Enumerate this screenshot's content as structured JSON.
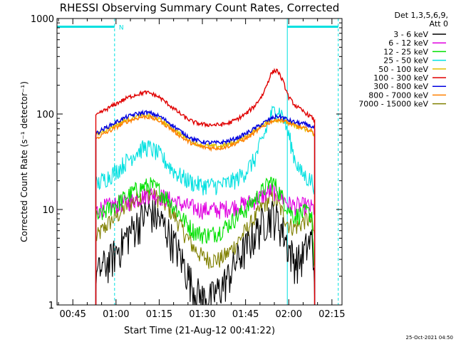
{
  "chart_data": {
    "type": "line",
    "title": "RHESSI Observing Summary Count Rates, Corrected",
    "xlabel": "Start Time (21-Aug-12 00:41:22)",
    "ylabel": "Corrected Count Rate (s⁻¹ detector⁻¹)",
    "y_scale": "log",
    "ylim": [
      1,
      1000
    ],
    "xlim_minutes": [
      39.5,
      138.5
    ],
    "x_ticks": [
      {
        "minute": 45,
        "label": "00:45"
      },
      {
        "minute": 60,
        "label": "01:00"
      },
      {
        "minute": 75,
        "label": "01:15"
      },
      {
        "minute": 90,
        "label": "01:30"
      },
      {
        "minute": 105,
        "label": "01:45"
      },
      {
        "minute": 120,
        "label": "02:00"
      },
      {
        "minute": 135,
        "label": "02:15"
      }
    ],
    "y_ticks": [
      {
        "value": 1,
        "label": "1"
      },
      {
        "value": 10,
        "label": "10"
      },
      {
        "value": 100,
        "label": "100"
      },
      {
        "value": 1000,
        "label": "1000"
      }
    ],
    "legend_header": [
      "Det 1,3,5,6,9,",
      "Att 0"
    ],
    "legend_position": "right",
    "series": [
      {
        "name": "3 - 6 keV",
        "color": "#000000",
        "x": [
          53,
          55,
          58,
          61,
          64,
          67,
          70,
          72,
          75,
          78,
          81,
          84,
          87,
          90,
          93,
          96,
          99,
          102,
          105,
          108,
          111,
          114,
          116,
          118,
          120,
          122,
          124,
          126,
          128,
          129
        ],
        "y": [
          2,
          2.5,
          3,
          4,
          5.5,
          7,
          9,
          9.5,
          8,
          6,
          4,
          2.5,
          1.5,
          1.2,
          1.2,
          1.5,
          2,
          3,
          4,
          5.5,
          7.5,
          9,
          8,
          6,
          4,
          3,
          3,
          4,
          5,
          2
        ]
      },
      {
        "name": "6 - 12 keV",
        "color": "#e000e0",
        "x": [
          53,
          55,
          58,
          61,
          64,
          67,
          70,
          72,
          75,
          78,
          81,
          84,
          87,
          90,
          93,
          96,
          99,
          102,
          105,
          108,
          111,
          114,
          116,
          118,
          120,
          122,
          124,
          126,
          128,
          129
        ],
        "y": [
          9.5,
          10.5,
          11,
          11.5,
          12,
          13,
          14,
          14.5,
          14,
          13,
          12,
          11,
          10.5,
          10,
          10,
          10,
          10.5,
          11,
          11.5,
          12.5,
          14,
          16,
          15,
          13,
          11.5,
          11,
          11,
          11,
          10.5,
          10
        ]
      },
      {
        "name": "12 - 25 keV",
        "color": "#00e000",
        "x": [
          53,
          55,
          58,
          61,
          64,
          67,
          70,
          72,
          75,
          78,
          81,
          84,
          87,
          90,
          93,
          96,
          99,
          102,
          105,
          108,
          111,
          114,
          116,
          118,
          120,
          122,
          124,
          126,
          128,
          129
        ],
        "y": [
          8,
          9,
          10.5,
          12,
          14,
          16,
          17.5,
          18,
          16,
          13,
          10,
          7.5,
          6,
          5.5,
          5.5,
          6,
          7,
          8.5,
          10,
          12.5,
          16,
          20,
          17,
          13,
          10,
          8.5,
          9,
          9.5,
          9,
          2
        ]
      },
      {
        "name": "25 - 50 keV",
        "color": "#00e0e0",
        "x": [
          53,
          55,
          58,
          61,
          64,
          67,
          70,
          72,
          75,
          78,
          81,
          84,
          87,
          90,
          93,
          96,
          99,
          102,
          105,
          108,
          111,
          114,
          116,
          118,
          120,
          122,
          124,
          126,
          128,
          129
        ],
        "y": [
          18,
          20,
          23,
          27,
          33,
          40,
          45,
          44,
          38,
          30,
          24,
          21,
          19,
          18,
          18,
          18,
          19,
          21,
          25,
          33,
          55,
          100,
          115,
          95,
          60,
          35,
          25,
          22,
          20,
          18
        ]
      },
      {
        "name": "50 - 100 keV",
        "color": "#e0c000",
        "x": [
          53,
          55,
          58,
          61,
          64,
          67,
          70,
          72,
          75,
          78,
          81,
          84,
          87,
          90,
          93,
          96,
          99,
          102,
          105,
          108,
          111,
          114,
          116,
          118,
          120,
          122,
          124,
          126,
          128,
          129
        ],
        "y": [
          60,
          65,
          72,
          80,
          88,
          94,
          97,
          95,
          88,
          77,
          66,
          57,
          50,
          47,
          46,
          46,
          48,
          52,
          58,
          66,
          78,
          85,
          87,
          85,
          80,
          75,
          72,
          68,
          65,
          60
        ]
      },
      {
        "name": "100 - 300 keV",
        "color": "#e00000",
        "x": [
          53,
          55,
          58,
          61,
          64,
          67,
          70,
          72,
          75,
          78,
          81,
          84,
          87,
          90,
          93,
          96,
          99,
          102,
          105,
          108,
          111,
          114,
          116,
          118,
          120,
          122,
          124,
          126,
          128,
          129
        ],
        "y": [
          95,
          105,
          118,
          133,
          148,
          160,
          168,
          165,
          150,
          128,
          108,
          92,
          82,
          78,
          77,
          77,
          80,
          88,
          100,
          120,
          160,
          270,
          290,
          220,
          150,
          125,
          112,
          102,
          92,
          85
        ]
      },
      {
        "name": "300 - 800 keV",
        "color": "#0000e0",
        "x": [
          53,
          55,
          58,
          61,
          64,
          67,
          70,
          72,
          75,
          78,
          81,
          84,
          87,
          90,
          93,
          96,
          99,
          102,
          105,
          108,
          111,
          114,
          116,
          118,
          120,
          122,
          124,
          126,
          128,
          129
        ],
        "y": [
          62,
          68,
          76,
          85,
          94,
          100,
          104,
          102,
          95,
          83,
          71,
          61,
          54,
          51,
          50,
          50,
          52,
          56,
          62,
          70,
          80,
          90,
          95,
          92,
          86,
          82,
          80,
          78,
          74,
          70
        ]
      },
      {
        "name": "800 - 7000 keV",
        "color": "#ff8000",
        "x": [
          53,
          55,
          58,
          61,
          64,
          67,
          70,
          72,
          75,
          78,
          81,
          84,
          87,
          90,
          93,
          96,
          99,
          102,
          105,
          108,
          111,
          114,
          116,
          118,
          120,
          122,
          124,
          126,
          128,
          129
        ],
        "y": [
          55,
          60,
          67,
          75,
          84,
          90,
          94,
          92,
          85,
          74,
          63,
          54,
          48,
          45,
          44,
          44,
          46,
          50,
          55,
          63,
          74,
          84,
          88,
          86,
          80,
          76,
          73,
          70,
          66,
          62
        ]
      },
      {
        "name": "7000 - 15000 keV",
        "color": "#808000",
        "x": [
          53,
          55,
          58,
          61,
          64,
          67,
          70,
          72,
          75,
          78,
          81,
          84,
          87,
          90,
          93,
          96,
          99,
          102,
          105,
          108,
          111,
          114,
          116,
          118,
          120,
          122,
          124,
          126,
          128,
          129
        ],
        "y": [
          5,
          6,
          7.5,
          9,
          11,
          13,
          14.5,
          14.5,
          13,
          10.5,
          8,
          5.5,
          4,
          3.2,
          3,
          3,
          3.5,
          4.5,
          6,
          8,
          11,
          13.5,
          12,
          9,
          7,
          6.5,
          7,
          8,
          7.5,
          5
        ]
      }
    ],
    "annotations": [
      {
        "text": "N",
        "minute": 60.5,
        "value": 820
      }
    ],
    "segments": {
      "color": "#00e0e0",
      "bars": [
        [
          39.5,
          59.5
        ],
        [
          119.5,
          137.2
        ]
      ],
      "bar_value": 820,
      "solid_lines": [
        39.5,
        119.5
      ],
      "dashed_lines": [
        59.5,
        137.2
      ]
    }
  },
  "timestamp": "25-Oct-2021 04:50"
}
